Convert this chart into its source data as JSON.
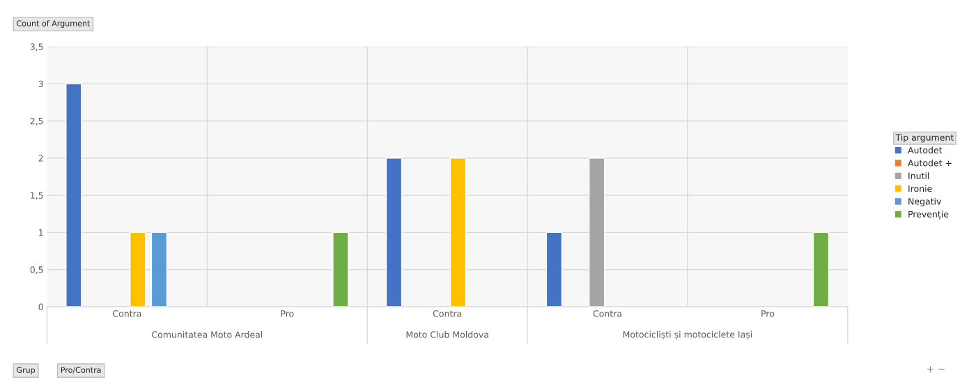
{
  "chart_data": {
    "type": "bar",
    "categories": [
      "Contra",
      "Pro",
      "Contra",
      "Contra",
      "Pro"
    ],
    "legend_title": "Tip argument",
    "series": [
      {
        "name": "Autodet",
        "color": "#4472c4",
        "values": [
          3,
          null,
          2,
          1,
          null
        ]
      },
      {
        "name": "Autodet +",
        "color": "#ed7d31",
        "values": [
          null,
          null,
          null,
          null,
          null
        ]
      },
      {
        "name": "Inutil",
        "color": "#a5a5a5",
        "values": [
          null,
          null,
          null,
          2,
          null
        ]
      },
      {
        "name": "Ironie",
        "color": "#ffc000",
        "values": [
          1,
          null,
          2,
          null,
          null
        ]
      },
      {
        "name": "Negativ",
        "color": "#5b9bd5",
        "values": [
          1,
          null,
          null,
          null,
          null
        ]
      },
      {
        "name": "Prevenție",
        "color": "#70ad47",
        "values": [
          null,
          1,
          null,
          null,
          1
        ]
      }
    ],
    "ylim": [
      0,
      3.5
    ],
    "yticks": [
      0,
      {
        "value": 0.5,
        "label": "0,5"
      },
      1,
      {
        "value": 1.5,
        "label": "1,5"
      },
      2,
      {
        "value": 2.5,
        "label": "2,5"
      },
      3,
      {
        "value": 3.5,
        "label": "3,5"
      }
    ],
    "grid": "y",
    "legend": "right",
    "annotations": [
      "Count of Argument",
      "Comunitatea Moto Ardeal",
      "Moto Club Moldova",
      "Motocicliști și motociclete Iași",
      "Grup",
      "Pro/Contra",
      "+ −"
    ]
  }
}
